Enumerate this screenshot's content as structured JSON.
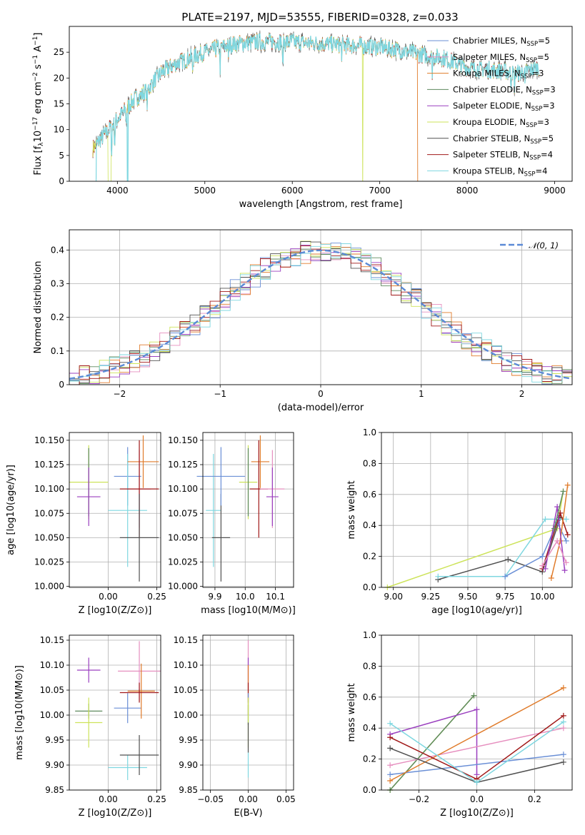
{
  "title": "PLATE=2197, MJD=53555, FIBERID=0328, z=0.033",
  "models": [
    {
      "key": "cm",
      "label": "Chabrier MILES, N",
      "sub": "SSP",
      "suffix": "=5",
      "color": "#6a8fd6"
    },
    {
      "key": "sm",
      "label": "Salpeter MILES, N",
      "sub": "SSP",
      "suffix": "=5",
      "color": "#e68fbf"
    },
    {
      "key": "km",
      "label": "Kroupa MILES, N",
      "sub": "SSP",
      "suffix": "=3",
      "color": "#e07b2a"
    },
    {
      "key": "ce",
      "label": "Chabrier ELODIE, N",
      "sub": "SSP",
      "suffix": "=3",
      "color": "#5e8a5e"
    },
    {
      "key": "se",
      "label": "Salpeter ELODIE, N",
      "sub": "SSP",
      "suffix": "=3",
      "color": "#9a3fbf"
    },
    {
      "key": "ke",
      "label": "Kroupa ELODIE, N",
      "sub": "SSP",
      "suffix": "=3",
      "color": "#cde35a"
    },
    {
      "key": "cs",
      "label": "Chabrier STELIB, N",
      "sub": "SSP",
      "suffix": "=5",
      "color": "#505050"
    },
    {
      "key": "ss",
      "label": "Salpeter STELIB, N",
      "sub": "SSP",
      "suffix": "=4",
      "color": "#a01818"
    },
    {
      "key": "ks",
      "label": "Kroupa STELIB, N",
      "sub": "SSP",
      "suffix": "=4",
      "color": "#7fd7e0"
    }
  ],
  "chart_data": [
    {
      "id": "spectrum",
      "type": "line",
      "title": "PLATE=2197, MJD=53555, FIBERID=0328, z=0.033",
      "xlabel": "wavelength [Angstrom, rest frame]",
      "ylabel_parts": [
        "Flux [f",
        "λ",
        "10",
        "−17",
        " erg cm",
        "−2",
        " s",
        "−1",
        " A",
        "−1",
        "]"
      ],
      "xlim": [
        3450,
        9200
      ],
      "ylim": [
        0,
        30
      ],
      "xticks": [
        4000,
        5000,
        6000,
        7000,
        8000,
        9000
      ],
      "yticks": [
        0,
        5,
        10,
        15,
        20,
        25
      ],
      "grid": false,
      "legend": "upper right",
      "continuum": {
        "x": [
          3720,
          3800,
          3900,
          4000,
          4100,
          4200,
          4300,
          4400,
          4500,
          4700,
          5000,
          5300,
          5600,
          6000,
          6500,
          7000,
          7200,
          7500,
          7700,
          8000,
          8300,
          8600,
          8800
        ],
        "y": [
          6.5,
          8,
          10,
          12,
          14,
          16,
          17,
          19,
          21,
          23,
          25,
          26.5,
          27,
          27,
          26.5,
          26,
          25.5,
          24.5,
          24,
          22,
          21.5,
          21,
          22
        ]
      }
    },
    {
      "id": "residuals",
      "type": "bar",
      "xlabel": "(data-model)/error",
      "ylabel": "Normed distribution",
      "xlim": [
        -2.5,
        2.5
      ],
      "ylim": [
        0,
        0.46
      ],
      "xticks": [
        -2,
        -1,
        0,
        1,
        2
      ],
      "yticks": [
        0,
        0.1,
        0.2,
        0.3,
        0.4
      ],
      "grid": true,
      "legend": "upper right",
      "gaussian_label": "𝒩(0, 1)",
      "gaussian_color": "#5b8ad6",
      "bin_width": 0.1
    },
    {
      "id": "age_vs_Z",
      "type": "scatter",
      "xlabel": "Z [log10(Z/Z⊙)]",
      "ylabel": "age  [log10(age/yr)]",
      "xlim": [
        -0.2,
        0.27
      ],
      "ylim": [
        9.999,
        10.158
      ],
      "xticks": [
        0,
        0.25
      ],
      "xticklabels": [
        "0.00",
        "0.25"
      ],
      "yticks": [
        10.0,
        10.025,
        10.05,
        10.075,
        10.1,
        10.125,
        10.15
      ],
      "yticklabels": [
        "10.000",
        "10.025",
        "10.050",
        "10.075",
        "10.100",
        "10.125",
        "10.150"
      ],
      "grid": true,
      "points": [
        {
          "m": "ke",
          "x": -0.1,
          "y": 10.107,
          "xe": 0.1,
          "ye": 0.038
        },
        {
          "m": "ce",
          "x": -0.1,
          "y": 10.107,
          "xe": 0.0,
          "ye": 0.035
        },
        {
          "m": "se",
          "x": -0.1,
          "y": 10.092,
          "xe": 0.06,
          "ye": 0.03
        },
        {
          "m": "cm",
          "x": 0.1,
          "y": 10.113,
          "xe": 0.07,
          "ye": 0.03
        },
        {
          "m": "ks",
          "x": 0.1,
          "y": 10.078,
          "xe": 0.1,
          "ye": 0.058
        },
        {
          "m": "km",
          "x": 0.18,
          "y": 10.128,
          "xe": 0.08,
          "ye": 0.027
        },
        {
          "m": "sm",
          "x": 0.16,
          "y": 10.1,
          "xe": 0.06,
          "ye": 0.04
        },
        {
          "m": "ss",
          "x": 0.16,
          "y": 10.1,
          "xe": 0.1,
          "ye": 0.05
        },
        {
          "m": "cs",
          "x": 0.16,
          "y": 10.05,
          "xe": 0.1,
          "ye": 0.045
        }
      ]
    },
    {
      "id": "age_vs_mass",
      "type": "scatter",
      "xlabel": "mass [log10(M/M⊙)]",
      "xlim": [
        9.86,
        10.16
      ],
      "ylim": [
        9.999,
        10.158
      ],
      "xticks": [
        9.9,
        10.0,
        10.1
      ],
      "xticklabels": [
        "9.9",
        "10.0",
        "10.1"
      ],
      "yticks": [
        10.0,
        10.025,
        10.05,
        10.075,
        10.1,
        10.125,
        10.15
      ],
      "yticklabels": [
        "10.000",
        "10.025",
        "10.050",
        "10.075",
        "10.100",
        "10.125",
        "10.150"
      ],
      "grid": true,
      "points": [
        {
          "m": "ks",
          "x": 9.895,
          "y": 10.078,
          "xe": 0.025,
          "ye": 0.058
        },
        {
          "m": "cs",
          "x": 9.92,
          "y": 10.05,
          "xe": 0.03,
          "ye": 0.045
        },
        {
          "m": "cm",
          "x": 9.92,
          "y": 10.113,
          "xe": 0.08,
          "ye": 0.03
        },
        {
          "m": "ke",
          "x": 10.01,
          "y": 10.107,
          "xe": 0.03,
          "ye": 0.038
        },
        {
          "m": "ce",
          "x": 10.01,
          "y": 10.107,
          "xe": 0.0,
          "ye": 0.035
        },
        {
          "m": "km",
          "x": 10.05,
          "y": 10.128,
          "xe": 0.03,
          "ye": 0.027
        },
        {
          "m": "ss",
          "x": 10.045,
          "y": 10.1,
          "xe": 0.03,
          "ye": 0.05
        },
        {
          "m": "sm",
          "x": 10.09,
          "y": 10.1,
          "xe": 0.04,
          "ye": 0.04
        },
        {
          "m": "se",
          "x": 10.09,
          "y": 10.092,
          "xe": 0.02,
          "ye": 0.03
        }
      ]
    },
    {
      "id": "mass_weight_vs_age",
      "type": "line",
      "xlabel": "age  [log10(age/yr)]",
      "ylabel": "mass weight",
      "xlim": [
        8.92,
        10.2
      ],
      "ylim": [
        0,
        1
      ],
      "xticks": [
        9.0,
        9.25,
        9.5,
        9.75,
        10.0
      ],
      "xticklabels": [
        "9.00",
        "9.25",
        "9.50",
        "9.75",
        "10.00"
      ],
      "yticks": [
        0,
        0.2,
        0.4,
        0.6,
        0.8,
        1.0
      ],
      "yticklabels": [
        "0.0",
        "0.2",
        "0.4",
        "0.6",
        "0.8",
        "1.0"
      ],
      "grid": true,
      "series": [
        {
          "m": "ke",
          "x": [
            8.96,
            10.1,
            10.14
          ],
          "y": [
            0.0,
            0.38,
            0.62
          ]
        },
        {
          "m": "cs",
          "x": [
            9.3,
            9.77,
            10.0,
            10.12
          ],
          "y": [
            0.05,
            0.18,
            0.1,
            0.45
          ]
        },
        {
          "m": "ks",
          "x": [
            9.3,
            9.75,
            10.02,
            10.16
          ],
          "y": [
            0.07,
            0.07,
            0.44,
            0.44
          ]
        },
        {
          "m": "cm",
          "x": [
            9.75,
            10.0,
            10.1,
            10.16
          ],
          "y": [
            0.07,
            0.2,
            0.42,
            0.3
          ]
        },
        {
          "m": "ss",
          "x": [
            10.0,
            10.12,
            10.17
          ],
          "y": [
            0.12,
            0.48,
            0.34
          ]
        },
        {
          "m": "km",
          "x": [
            10.06,
            10.12,
            10.17
          ],
          "y": [
            0.06,
            0.3,
            0.66
          ]
        },
        {
          "m": "se",
          "x": [
            10.02,
            10.1,
            10.15
          ],
          "y": [
            0.12,
            0.52,
            0.11
          ]
        },
        {
          "m": "sm",
          "x": [
            10.0,
            10.1,
            10.16
          ],
          "y": [
            0.14,
            0.3,
            0.16
          ]
        },
        {
          "m": "ce",
          "x": [
            10.08,
            10.14
          ],
          "y": [
            0.38,
            0.62
          ]
        }
      ]
    },
    {
      "id": "mass_vs_Z",
      "type": "scatter",
      "xlabel": "Z [log10(Z/Z⊙)]",
      "ylabel": "mass [log10(M/M⊙)]",
      "xlim": [
        -0.2,
        0.27
      ],
      "ylim": [
        9.85,
        10.16
      ],
      "xticks": [
        0,
        0.25
      ],
      "xticklabels": [
        "0.00",
        "0.25"
      ],
      "yticks": [
        9.85,
        9.9,
        9.95,
        10.0,
        10.05,
        10.1,
        10.15
      ],
      "yticklabels": [
        "9.85",
        "9.90",
        "9.95",
        "10.00",
        "10.05",
        "10.10",
        "10.15"
      ],
      "grid": true,
      "points": [
        {
          "m": "se",
          "x": -0.1,
          "y": 10.09,
          "xe": 0.06,
          "ye": 0.025
        },
        {
          "m": "ce",
          "x": -0.1,
          "y": 10.008,
          "xe": 0.07,
          "ye": 0.015
        },
        {
          "m": "ke",
          "x": -0.1,
          "y": 9.985,
          "xe": 0.07,
          "ye": 0.05
        },
        {
          "m": "cm",
          "x": 0.1,
          "y": 10.014,
          "xe": 0.07,
          "ye": 0.03
        },
        {
          "m": "ks",
          "x": 0.1,
          "y": 9.895,
          "xe": 0.1,
          "ye": 0.025
        },
        {
          "m": "sm",
          "x": 0.16,
          "y": 10.088,
          "xe": 0.11,
          "ye": 0.06
        },
        {
          "m": "km",
          "x": 0.17,
          "y": 10.048,
          "xe": 0.07,
          "ye": 0.055
        },
        {
          "m": "ss",
          "x": 0.16,
          "y": 10.045,
          "xe": 0.1,
          "ye": 0.02
        },
        {
          "m": "cs",
          "x": 0.16,
          "y": 9.92,
          "xe": 0.1,
          "ye": 0.04
        }
      ]
    },
    {
      "id": "mass_vs_EBV",
      "type": "scatter",
      "xlabel": "E(B-V)",
      "xlim": [
        -0.06,
        0.06
      ],
      "ylim": [
        9.85,
        10.16
      ],
      "xticks": [
        -0.05,
        0,
        0.05
      ],
      "xticklabels": [
        "−0.05",
        "0.00",
        "0.05"
      ],
      "yticks": [
        9.85,
        9.9,
        9.95,
        10.0,
        10.05,
        10.1,
        10.15
      ],
      "yticklabels": [
        "9.85",
        "9.90",
        "9.95",
        "10.00",
        "10.05",
        "10.10",
        "10.15"
      ],
      "grid": true,
      "points": [
        {
          "m": "sm",
          "x": 0,
          "y": 10.1,
          "xe": 0,
          "ye": 0.05
        },
        {
          "m": "se",
          "x": 0,
          "y": 10.09,
          "xe": 0,
          "ye": 0.025
        },
        {
          "m": "km",
          "x": 0,
          "y": 10.05,
          "xe": 0,
          "ye": 0.05
        },
        {
          "m": "ss",
          "x": 0,
          "y": 10.045,
          "xe": 0,
          "ye": 0.02
        },
        {
          "m": "cm",
          "x": 0,
          "y": 10.014,
          "xe": 0,
          "ye": 0.03
        },
        {
          "m": "ce",
          "x": 0,
          "y": 10.0,
          "xe": 0,
          "ye": 0.02
        },
        {
          "m": "ke",
          "x": 0,
          "y": 9.985,
          "xe": 0,
          "ye": 0.05
        },
        {
          "m": "cs",
          "x": 0,
          "y": 9.955,
          "xe": 0,
          "ye": 0.03
        },
        {
          "m": "ks",
          "x": 0,
          "y": 9.9,
          "xe": 0,
          "ye": 0.025
        }
      ]
    },
    {
      "id": "mass_weight_vs_Z",
      "type": "line",
      "xlabel": "Z [log10(Z/Z⊙)]",
      "ylabel": "mass weight",
      "xlim": [
        -0.33,
        0.33
      ],
      "ylim": [
        0,
        1
      ],
      "xticks": [
        -0.2,
        0,
        0.2
      ],
      "xticklabels": [
        "−0.2",
        "0.0",
        "0.2"
      ],
      "yticks": [
        0,
        0.2,
        0.4,
        0.6,
        0.8,
        1.0
      ],
      "yticklabels": [
        "0.0",
        "0.2",
        "0.4",
        "0.6",
        "0.8",
        "1.0"
      ],
      "grid": true,
      "series": [
        {
          "m": "ke",
          "x": [
            -0.3,
            -0.01
          ],
          "y": [
            0.0,
            0.61
          ]
        },
        {
          "m": "ce",
          "x": [
            -0.3,
            -0.01
          ],
          "y": [
            0.0,
            0.61
          ]
        },
        {
          "m": "se",
          "x": [
            -0.3,
            0.0,
            0.0
          ],
          "y": [
            0.36,
            0.52,
            0.1
          ]
        },
        {
          "m": "cm",
          "x": [
            -0.3,
            0.3
          ],
          "y": [
            0.1,
            0.23
          ]
        },
        {
          "m": "sm",
          "x": [
            -0.3,
            0.3
          ],
          "y": [
            0.16,
            0.4
          ]
        },
        {
          "m": "km",
          "x": [
            -0.3,
            0.3
          ],
          "y": [
            0.06,
            0.66
          ]
        },
        {
          "m": "cs",
          "x": [
            -0.3,
            0.0,
            0.3
          ],
          "y": [
            0.27,
            0.05,
            0.18
          ]
        },
        {
          "m": "ss",
          "x": [
            -0.3,
            0.0,
            0.3
          ],
          "y": [
            0.34,
            0.07,
            0.48
          ]
        },
        {
          "m": "ks",
          "x": [
            -0.3,
            0.0,
            0.3
          ],
          "y": [
            0.43,
            0.05,
            0.44
          ]
        }
      ]
    }
  ]
}
